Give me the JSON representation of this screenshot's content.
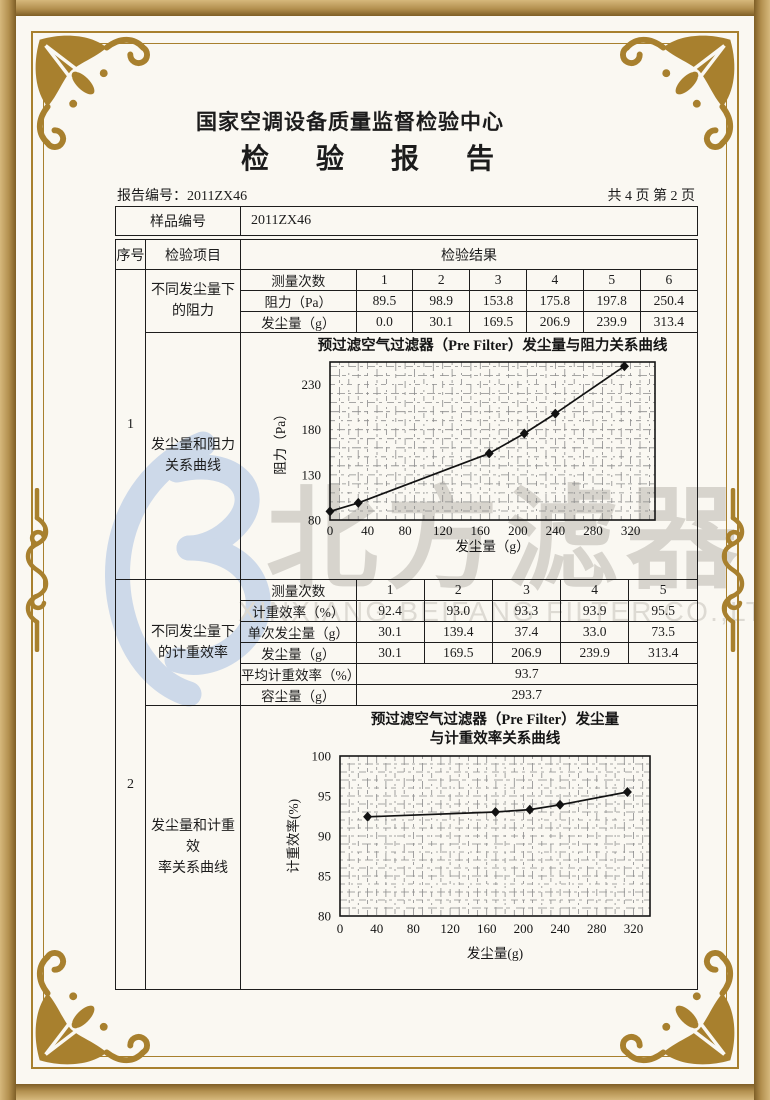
{
  "page": {
    "org_title": "国家空调设备质量监督检验中心",
    "report_title": "检 验 报 告",
    "report_no_label": "报告编号：2011ZX46",
    "page_info": "共 4 页 第 2 页"
  },
  "sample": {
    "label": "样品编号",
    "value": "2011ZX46"
  },
  "table": {
    "col_seq": "序号",
    "col_item": "检验项目",
    "col_result": "检验结果",
    "sections": [
      {
        "seq": "1",
        "item1": "不同发尘量下\n的阻力",
        "item2": "发尘量和阻力\n关系曲线"
      },
      {
        "seq": "2",
        "item1": "不同发尘量下\n的计重效率",
        "item2": "发尘量和计重效\n率关系曲线"
      }
    ]
  },
  "resistance_table": {
    "rows": [
      {
        "label": "测量次数",
        "values": [
          "1",
          "2",
          "3",
          "4",
          "5",
          "6"
        ]
      },
      {
        "label": "阻力（Pa）",
        "values": [
          "89.5",
          "98.9",
          "153.8",
          "175.8",
          "197.8",
          "250.4"
        ]
      },
      {
        "label": "发尘量（g）",
        "values": [
          "0.0",
          "30.1",
          "169.5",
          "206.9",
          "239.9",
          "313.4"
        ]
      }
    ]
  },
  "efficiency_table": {
    "rows": [
      {
        "label": "测量次数",
        "values": [
          "1",
          "2",
          "3",
          "4",
          "5"
        ]
      },
      {
        "label": "计重效率（%）",
        "values": [
          "92.4",
          "93.0",
          "93.3",
          "93.9",
          "95.5"
        ]
      },
      {
        "label": "单次发尘量（g）",
        "values": [
          "30.1",
          "139.4",
          "37.4",
          "33.0",
          "73.5"
        ]
      },
      {
        "label": "发尘量（g）",
        "values": [
          "30.1",
          "169.5",
          "206.9",
          "239.9",
          "313.4"
        ]
      }
    ],
    "avg": {
      "label": "平均计重效率（%）",
      "value": "93.7"
    },
    "capacity": {
      "label": "容尘量（g）",
      "value": "293.7"
    }
  },
  "watermark": {
    "cn": "北方滤器",
    "en": "XINXIANG BEIFANG FILTER CO.,LTD.",
    "logo_color": "#cdd9e9",
    "cn_color": "#d7d4cd",
    "en_color": "#dddad3"
  },
  "frame": {
    "gold": "#a8802e",
    "band_light": "#d6b87c",
    "band_dark": "#7e5e26",
    "paper": "#faf8f2"
  },
  "chart_data": [
    {
      "type": "line",
      "title": "预过滤空气过滤器（Pre Filter）发尘量与阻力关系曲线",
      "title_lines": [
        "预过滤空气过滤器（Pre Filter）发尘量与阻力关系曲线"
      ],
      "xlabel": "发尘量（g）",
      "ylabel": "阻力（Pa）",
      "x": [
        0,
        30.1,
        169.5,
        206.9,
        239.9,
        313.4
      ],
      "y": [
        89.5,
        98.9,
        153.8,
        175.8,
        197.8,
        250.4
      ],
      "xlim": [
        0,
        346
      ],
      "ylim": [
        80,
        255
      ],
      "xticks": [
        0,
        40,
        80,
        120,
        160,
        200,
        240,
        280,
        320
      ],
      "yticks": [
        80,
        130,
        180,
        230
      ],
      "x_minor": 10,
      "y_minor": 10,
      "grid": true,
      "legend": "none",
      "marker": "diamond"
    },
    {
      "type": "line",
      "title": "预过滤空气过滤器（Pre Filter）发尘量与计重效率关系曲线",
      "title_lines": [
        "预过滤空气过滤器（Pre Filter）发尘量",
        "与计重效率关系曲线"
      ],
      "xlabel": "发尘量(g)",
      "ylabel": "计重效率(%)",
      "x": [
        30.1,
        169.5,
        206.9,
        239.9,
        313.4
      ],
      "y": [
        92.4,
        93.0,
        93.3,
        93.9,
        95.5
      ],
      "xlim": [
        0,
        338
      ],
      "ylim": [
        80,
        100
      ],
      "xticks": [
        0,
        40,
        80,
        120,
        160,
        200,
        240,
        280,
        320
      ],
      "yticks": [
        80,
        85,
        90,
        95,
        100
      ],
      "x_minor": 10,
      "y_minor": 1,
      "grid": true,
      "legend": "none",
      "marker": "diamond"
    }
  ]
}
